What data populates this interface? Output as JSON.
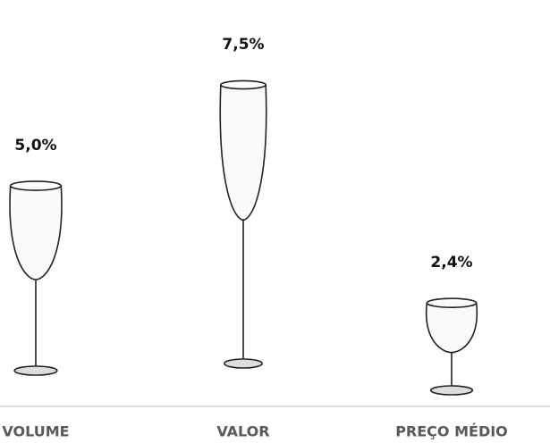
{
  "chart_data": {
    "type": "pictograph",
    "categories": [
      "VOLUME",
      "VALOR",
      "PREÇO MÉDIO"
    ],
    "values": [
      5.0,
      7.5,
      2.4
    ],
    "value_labels": [
      "5,0%",
      "7,5%",
      "2,4%"
    ],
    "color": "#222222"
  }
}
